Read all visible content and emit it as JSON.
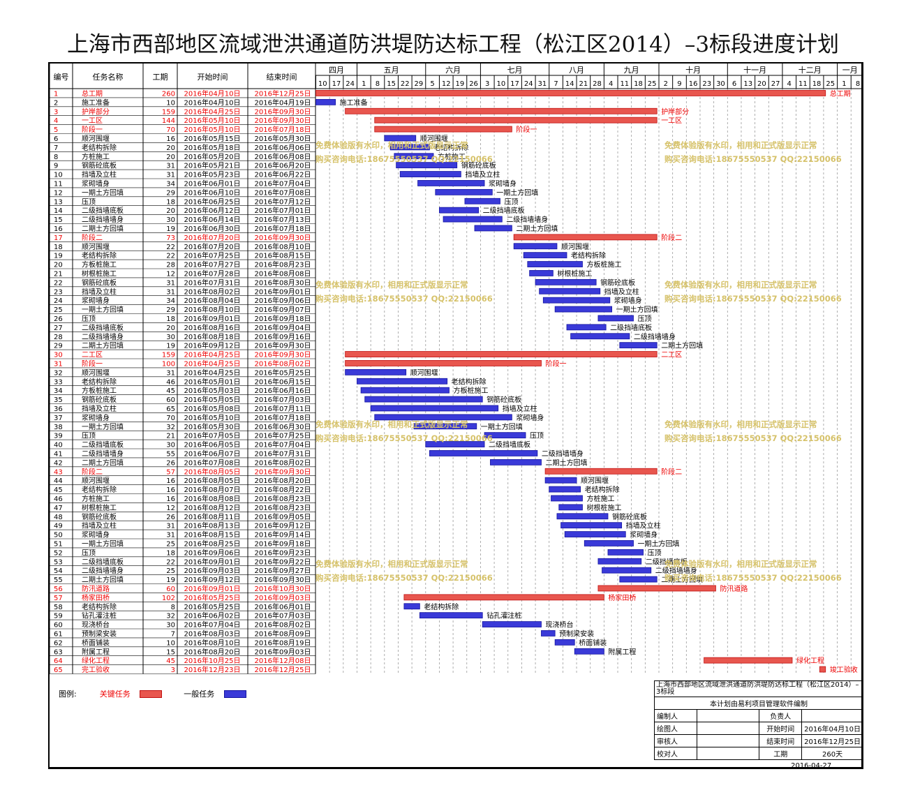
{
  "title": "上海市西部地区流域泄洪通道防洪堤防达标工程（松江区2014）–3标段进度计划",
  "columns": [
    "编号",
    "任务名称",
    "工期",
    "开始时间",
    "结束时间"
  ],
  "colors": {
    "critical": "#e8564e",
    "critical_text": "#ee0000",
    "normal": "#3a3ad8",
    "grid": "#9a9a9a",
    "watermark": "#d6c26a"
  },
  "timeline": {
    "months": [
      "四月",
      "五月",
      "六月",
      "七月",
      "八月",
      "九月",
      "十月",
      "十一月",
      "十二月",
      "一月"
    ],
    "weeks": [
      "10",
      "17",
      "24",
      "1",
      "8",
      "15",
      "22",
      "29",
      "5",
      "12",
      "19",
      "26",
      "3",
      "10",
      "17",
      "24",
      "31",
      "7",
      "14",
      "21",
      "28",
      "4",
      "11",
      "18",
      "25",
      "2",
      "9",
      "16",
      "23",
      "30",
      "6",
      "13",
      "20",
      "27",
      "4",
      "11",
      "18",
      "25",
      "1",
      "8"
    ]
  },
  "chart_data": {
    "type": "gantt",
    "tasks": [
      {
        "id": "1",
        "name": "总工期",
        "days": "260",
        "start": "2016年04月10日",
        "end": "2016年12月25日",
        "critical": true,
        "label": "总工期"
      },
      {
        "id": "2",
        "name": "施工准备",
        "days": "10",
        "start": "2016年04月10日",
        "end": "2016年04月19日",
        "critical": false,
        "label": "施工准备"
      },
      {
        "id": "3",
        "name": "护岸部分",
        "days": "159",
        "start": "2016年04月25日",
        "end": "2016年09月30日",
        "critical": true,
        "label": "护岸部分"
      },
      {
        "id": "4",
        "name": "一工区",
        "days": "144",
        "start": "2016年05月10日",
        "end": "2016年09月30日",
        "critical": true,
        "label": "一工区"
      },
      {
        "id": "5",
        "name": "阶段一",
        "days": "70",
        "start": "2016年05月10日",
        "end": "2016年07月18日",
        "critical": true,
        "label": "阶段一"
      },
      {
        "id": "6",
        "name": "顺河围堰",
        "days": "16",
        "start": "2016年05月15日",
        "end": "2016年05月30日",
        "critical": false,
        "label": "顺河围堰"
      },
      {
        "id": "7",
        "name": "老结构拆除",
        "days": "20",
        "start": "2016年05月18日",
        "end": "2016年06月06日",
        "critical": false,
        "label": "老结构拆除"
      },
      {
        "id": "8",
        "name": "方桩施工",
        "days": "20",
        "start": "2016年05月20日",
        "end": "2016年06月08日",
        "critical": false,
        "label": "方桩施工"
      },
      {
        "id": "9",
        "name": "钢筋砼底板",
        "days": "31",
        "start": "2016年05月21日",
        "end": "2016年06月20日",
        "critical": false,
        "label": "钢筋砼底板"
      },
      {
        "id": "10",
        "name": "挡墙及立柱",
        "days": "31",
        "start": "2016年05月23日",
        "end": "2016年06月22日",
        "critical": false,
        "label": "挡墙及立柱"
      },
      {
        "id": "11",
        "name": "浆砌墙身",
        "days": "34",
        "start": "2016年06月01日",
        "end": "2016年07月04日",
        "critical": false,
        "label": "浆砌墙身"
      },
      {
        "id": "12",
        "name": "一期土方回填",
        "days": "29",
        "start": "2016年06月10日",
        "end": "2016年07月08日",
        "critical": false,
        "label": "一期土方回填"
      },
      {
        "id": "13",
        "name": "压顶",
        "days": "18",
        "start": "2016年06月25日",
        "end": "2016年07月12日",
        "critical": false,
        "label": "压顶"
      },
      {
        "id": "14",
        "name": "二级挡墙底板",
        "days": "20",
        "start": "2016年06月12日",
        "end": "2016年07月01日",
        "critical": false,
        "label": "二级挡墙底板"
      },
      {
        "id": "15",
        "name": "二级挡墙墙身",
        "days": "30",
        "start": "2016年06月14日",
        "end": "2016年07月13日",
        "critical": false,
        "label": "二级挡墙墙身"
      },
      {
        "id": "16",
        "name": "二期土方回填",
        "days": "19",
        "start": "2016年06月30日",
        "end": "2016年07月18日",
        "critical": false,
        "label": "二期土方回填"
      },
      {
        "id": "17",
        "name": "阶段二",
        "days": "73",
        "start": "2016年07月20日",
        "end": "2016年09月30日",
        "critical": true,
        "label": "阶段二"
      },
      {
        "id": "18",
        "name": "顺河围堰",
        "days": "22",
        "start": "2016年07月20日",
        "end": "2016年08月10日",
        "critical": false,
        "label": "顺河围堰"
      },
      {
        "id": "19",
        "name": "老结构拆除",
        "days": "22",
        "start": "2016年07月25日",
        "end": "2016年08月15日",
        "critical": false,
        "label": "老结构拆除"
      },
      {
        "id": "20",
        "name": "方板桩施工",
        "days": "28",
        "start": "2016年07月27日",
        "end": "2016年08月23日",
        "critical": false,
        "label": "方板桩施工"
      },
      {
        "id": "21",
        "name": "树根桩施工",
        "days": "12",
        "start": "2016年07月28日",
        "end": "2016年08月08日",
        "critical": false,
        "label": "树根桩施工"
      },
      {
        "id": "22",
        "name": "钢筋砼底板",
        "days": "31",
        "start": "2016年07月31日",
        "end": "2016年08月30日",
        "critical": false,
        "label": "钢筋砼底板"
      },
      {
        "id": "23",
        "name": "挡墙及立柱",
        "days": "31",
        "start": "2016年08月02日",
        "end": "2016年09月01日",
        "critical": false,
        "label": "挡墙及立柱"
      },
      {
        "id": "24",
        "name": "浆砌墙身",
        "days": "34",
        "start": "2016年08月04日",
        "end": "2016年09月06日",
        "critical": false,
        "label": "浆砌墙身"
      },
      {
        "id": "25",
        "name": "一期土方回填",
        "days": "29",
        "start": "2016年08月10日",
        "end": "2016年09月07日",
        "critical": false,
        "label": "一期土方回填"
      },
      {
        "id": "26",
        "name": "压顶",
        "days": "18",
        "start": "2016年09月01日",
        "end": "2016年09月18日",
        "critical": false,
        "label": "压顶"
      },
      {
        "id": "27",
        "name": "二级挡墙底板",
        "days": "20",
        "start": "2016年08月16日",
        "end": "2016年09月04日",
        "critical": false,
        "label": "二级挡墙底板"
      },
      {
        "id": "28",
        "name": "二级挡墙墙身",
        "days": "30",
        "start": "2016年08月18日",
        "end": "2016年09月16日",
        "critical": false,
        "label": "二级挡墙墙身"
      },
      {
        "id": "29",
        "name": "二期土方回填",
        "days": "19",
        "start": "2016年09月12日",
        "end": "2016年09月30日",
        "critical": false,
        "label": "二期土方回填"
      },
      {
        "id": "30",
        "name": "二工区",
        "days": "159",
        "start": "2016年04月25日",
        "end": "2016年09月30日",
        "critical": true,
        "label": "二工区"
      },
      {
        "id": "31",
        "name": "阶段一",
        "days": "100",
        "start": "2016年04月25日",
        "end": "2016年08月02日",
        "critical": true,
        "label": "阶段一"
      },
      {
        "id": "32",
        "name": "顺河围堰",
        "days": "31",
        "start": "2016年04月25日",
        "end": "2016年05月25日",
        "critical": false,
        "label": "顺河围堰"
      },
      {
        "id": "33",
        "name": "老结构拆除",
        "days": "46",
        "start": "2016年05月01日",
        "end": "2016年06月15日",
        "critical": false,
        "label": "老结构拆除"
      },
      {
        "id": "34",
        "name": "方板桩施工",
        "days": "45",
        "start": "2016年05月03日",
        "end": "2016年06月16日",
        "critical": false,
        "label": "方板桩施工"
      },
      {
        "id": "35",
        "name": "钢筋砼底板",
        "days": "60",
        "start": "2016年05月05日",
        "end": "2016年07月03日",
        "critical": false,
        "label": "钢筋砼底板"
      },
      {
        "id": "36",
        "name": "挡墙及立柱",
        "days": "65",
        "start": "2016年05月08日",
        "end": "2016年07月11日",
        "critical": false,
        "label": "挡墙及立柱"
      },
      {
        "id": "37",
        "name": "浆砌墙身",
        "days": "70",
        "start": "2016年05月10日",
        "end": "2016年07月18日",
        "critical": false,
        "label": "浆砌墙身"
      },
      {
        "id": "38",
        "name": "一期土方回填",
        "days": "32",
        "start": "2016年05月30日",
        "end": "2016年06月30日",
        "critical": false,
        "label": "一期土方回填"
      },
      {
        "id": "39",
        "name": "压顶",
        "days": "21",
        "start": "2016年07月05日",
        "end": "2016年07月25日",
        "critical": false,
        "label": "压顶"
      },
      {
        "id": "40",
        "name": "二级挡墙底板",
        "days": "30",
        "start": "2016年06月05日",
        "end": "2016年07月04日",
        "critical": false,
        "label": "二级挡墙底板"
      },
      {
        "id": "41",
        "name": "二级挡墙墙身",
        "days": "55",
        "start": "2016年06月07日",
        "end": "2016年07月31日",
        "critical": false,
        "label": "二级挡墙墙身"
      },
      {
        "id": "42",
        "name": "二期土方回填",
        "days": "26",
        "start": "2016年07月08日",
        "end": "2016年08月02日",
        "critical": false,
        "label": "二期土方回填"
      },
      {
        "id": "43",
        "name": "阶段二",
        "days": "57",
        "start": "2016年08月05日",
        "end": "2016年09月30日",
        "critical": true,
        "label": "阶段二"
      },
      {
        "id": "44",
        "name": "顺河围堰",
        "days": "16",
        "start": "2016年08月05日",
        "end": "2016年08月20日",
        "critical": false,
        "label": "顺河围堰"
      },
      {
        "id": "45",
        "name": "老结构拆除",
        "days": "16",
        "start": "2016年08月07日",
        "end": "2016年08月22日",
        "critical": false,
        "label": "老结构拆除"
      },
      {
        "id": "46",
        "name": "方桩施工",
        "days": "16",
        "start": "2016年08月08日",
        "end": "2016年08月23日",
        "critical": false,
        "label": "方桩施工"
      },
      {
        "id": "47",
        "name": "树根桩施工",
        "days": "12",
        "start": "2016年08月12日",
        "end": "2016年08月23日",
        "critical": false,
        "label": "树根桩施工"
      },
      {
        "id": "48",
        "name": "钢筋砼底板",
        "days": "26",
        "start": "2016年08月11日",
        "end": "2016年09月05日",
        "critical": false,
        "label": "钢筋砼底板"
      },
      {
        "id": "49",
        "name": "挡墙及立柱",
        "days": "31",
        "start": "2016年08月13日",
        "end": "2016年09月12日",
        "critical": false,
        "label": "挡墙及立柱"
      },
      {
        "id": "50",
        "name": "浆砌墙身",
        "days": "31",
        "start": "2016年08月15日",
        "end": "2016年09月14日",
        "critical": false,
        "label": "浆砌墙身"
      },
      {
        "id": "51",
        "name": "一期土方回填",
        "days": "25",
        "start": "2016年08月25日",
        "end": "2016年09月18日",
        "critical": false,
        "label": "一期土方回填"
      },
      {
        "id": "52",
        "name": "压顶",
        "days": "18",
        "start": "2016年09月06日",
        "end": "2016年09月23日",
        "critical": false,
        "label": "压顶"
      },
      {
        "id": "53",
        "name": "二级挡墙底板",
        "days": "22",
        "start": "2016年09月01日",
        "end": "2016年09月22日",
        "critical": false,
        "label": "二级挡墙底板"
      },
      {
        "id": "54",
        "name": "二级挡墙墙身",
        "days": "25",
        "start": "2016年09月03日",
        "end": "2016年09月27日",
        "critical": false,
        "label": "二级挡墙墙身"
      },
      {
        "id": "55",
        "name": "二期土方回填",
        "days": "19",
        "start": "2016年09月12日",
        "end": "2016年09月30日",
        "critical": false,
        "label": "二期土方回填"
      },
      {
        "id": "56",
        "name": "防汛道路",
        "days": "60",
        "start": "2016年09月01日",
        "end": "2016年10月30日",
        "critical": true,
        "label": "防汛道路"
      },
      {
        "id": "57",
        "name": "杨家田桥",
        "days": "102",
        "start": "2016年05月25日",
        "end": "2016年09月03日",
        "critical": true,
        "label": "杨家田桥"
      },
      {
        "id": "58",
        "name": "老结构拆除",
        "days": "8",
        "start": "2016年05月25日",
        "end": "2016年06月01日",
        "critical": false,
        "label": "老结构拆除"
      },
      {
        "id": "59",
        "name": "钻孔灌注桩",
        "days": "32",
        "start": "2016年06月02日",
        "end": "2016年07月03日",
        "critical": false,
        "label": "钻孔灌注桩"
      },
      {
        "id": "60",
        "name": "现浇桥台",
        "days": "30",
        "start": "2016年07月04日",
        "end": "2016年08月02日",
        "critical": false,
        "label": "现浇桥台"
      },
      {
        "id": "61",
        "name": "预制梁安装",
        "days": "7",
        "start": "2016年08月03日",
        "end": "2016年08月09日",
        "critical": false,
        "label": "预制梁安装"
      },
      {
        "id": "62",
        "name": "桥面铺装",
        "days": "10",
        "start": "2016年08月10日",
        "end": "2016年08月19日",
        "critical": false,
        "label": "桥面铺装"
      },
      {
        "id": "63",
        "name": "附属工程",
        "days": "15",
        "start": "2016年08月20日",
        "end": "2016年09月03日",
        "critical": false,
        "label": "附属工程"
      },
      {
        "id": "64",
        "name": "绿化工程",
        "days": "45",
        "start": "2016年10月25日",
        "end": "2016年12月08日",
        "critical": true,
        "label": "绿化工程"
      },
      {
        "id": "65",
        "name": "完工验收",
        "days": "3",
        "start": "2016年12月23日",
        "end": "2016年12月25日",
        "critical": true,
        "label": "竣工验收"
      }
    ]
  },
  "watermark": {
    "line1": "免费体验版有水印，相用和正式版显示正常",
    "line2": "购买咨询电话:18675550537 QQ:22150066"
  },
  "legend": {
    "label": "图例:",
    "critical": "关键任务",
    "normal": "一般任务"
  },
  "info": {
    "project": "上海市西部地区流域泄洪通道防洪堤防达标工程（松江区2014）–3标段",
    "software": "本计划由易利项目管理软件编制",
    "rows": [
      {
        "a": "编制人",
        "b": "",
        "c": "负责人",
        "d": ""
      },
      {
        "a": "绘图人",
        "b": "",
        "c": "开始时间",
        "d": "2016年04月10日"
      },
      {
        "a": "审核人",
        "b": "",
        "c": "结束时间",
        "d": "2016年12月25日"
      },
      {
        "a": "校对人",
        "b": "",
        "c": "工期",
        "d": "260天"
      }
    ],
    "date": "2016-04-27"
  }
}
